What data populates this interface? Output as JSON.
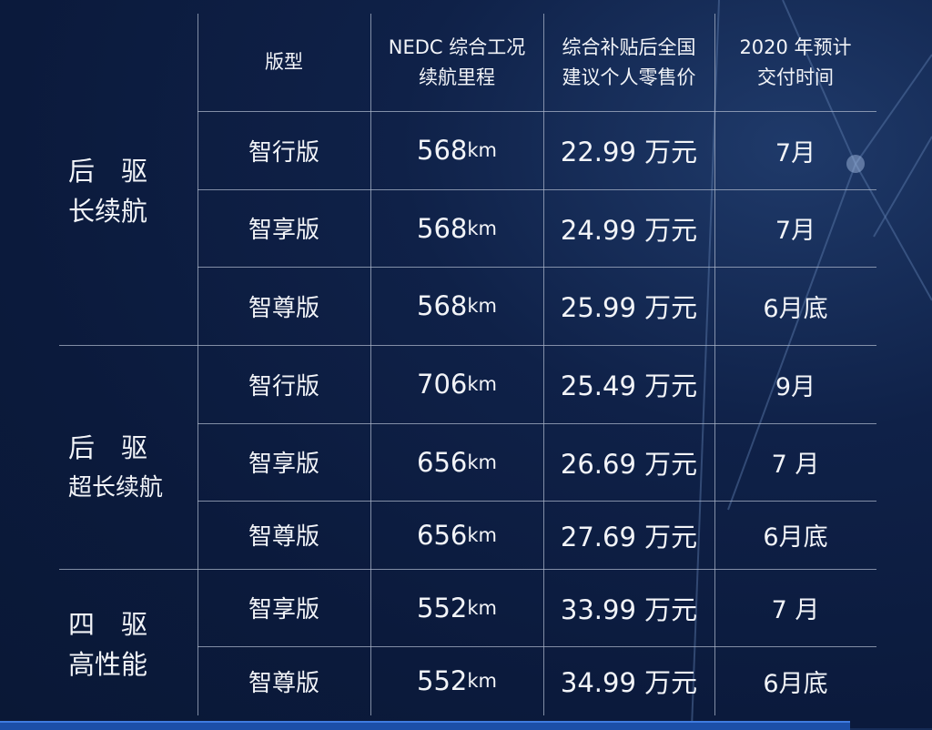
{
  "header": {
    "version": "版型",
    "range": [
      "NEDC 综合工况",
      "续航里程"
    ],
    "price": [
      "综合补贴后全国",
      "建议个人零售价"
    ],
    "delivery": [
      "2020 年预计",
      "交付时间"
    ]
  },
  "groups": [
    {
      "lines": [
        "后　驱",
        "长续航"
      ]
    },
    {
      "lines": [
        "后　驱",
        "超长续航"
      ]
    },
    {
      "lines": [
        "四　驱",
        "高性能"
      ]
    }
  ],
  "rows": [
    {
      "version": "智行版",
      "range": "568",
      "unit": "km",
      "price": "22.99 万元",
      "delivery": "7月"
    },
    {
      "version": "智享版",
      "range": "568",
      "unit": "km",
      "price": "24.99 万元",
      "delivery": "7月"
    },
    {
      "version": "智尊版",
      "range": "568",
      "unit": "km",
      "price": "25.99 万元",
      "delivery": "6月底"
    },
    {
      "version": "智行版",
      "range": "706",
      "unit": "km",
      "price": "25.49 万元",
      "delivery": "9月"
    },
    {
      "version": "智享版",
      "range": "656",
      "unit": "km",
      "price": "26.69 万元",
      "delivery": "7 月"
    },
    {
      "version": "智尊版",
      "range": "656",
      "unit": "km",
      "price": "27.69 万元",
      "delivery": "6月底"
    },
    {
      "version": "智享版",
      "range": "552",
      "unit": "km",
      "price": "33.99 万元",
      "delivery": "7 月"
    },
    {
      "version": "智尊版",
      "range": "552",
      "unit": "km",
      "price": "34.99 万元",
      "delivery": "6月底"
    }
  ]
}
